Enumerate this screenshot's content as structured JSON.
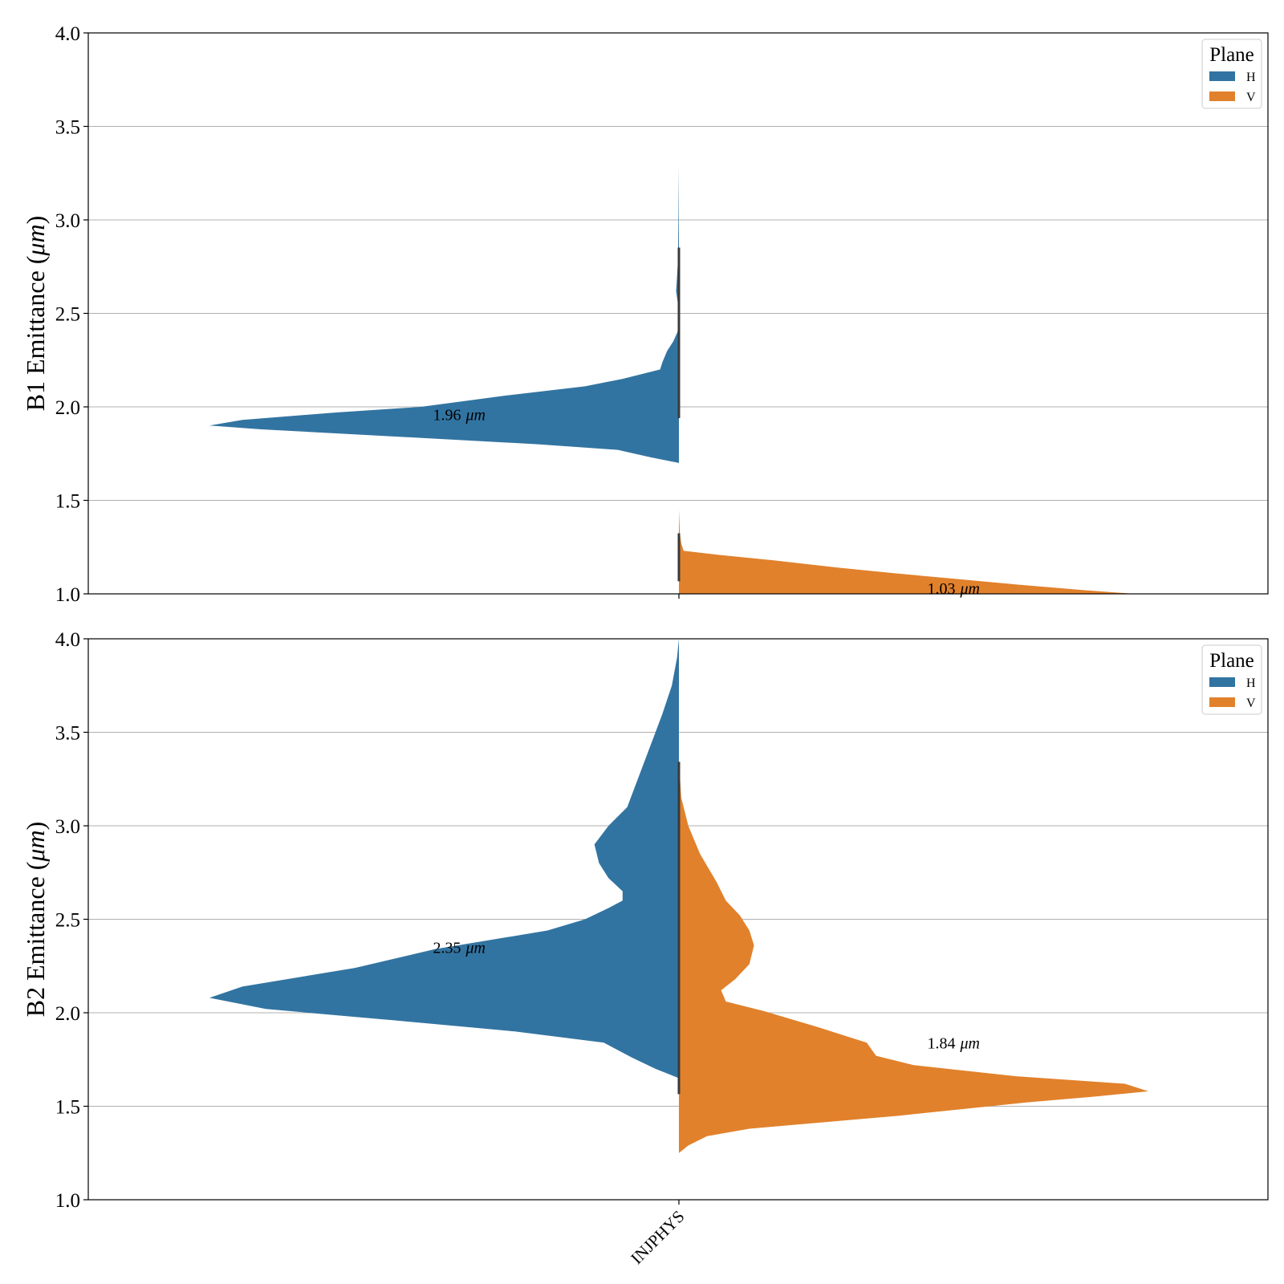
{
  "colors": {
    "H": "#3274a1",
    "V": "#e1812c"
  },
  "chart_data": [
    {
      "type": "violin",
      "ylabel_text": "B1 Emittance (",
      "ylabel_unit": "μm",
      "ylabel_close": ")",
      "ylim": [
        1.0,
        4.0
      ],
      "yticks": [
        "1.0",
        "1.5",
        "2.0",
        "2.5",
        "3.0",
        "3.5",
        "4.0"
      ],
      "grid": true,
      "legend": {
        "title": "Plane",
        "items": [
          "H",
          "V"
        ],
        "position": "top-right"
      },
      "categories": [
        "INJPHYS"
      ],
      "series": [
        {
          "name": "H",
          "side": "left",
          "median_label": "1.96",
          "median_y": 1.96,
          "label_x": -0.4,
          "profile": [
            [
              1.7,
              0.0
            ],
            [
              1.73,
              0.06
            ],
            [
              1.77,
              0.13
            ],
            [
              1.8,
              0.3
            ],
            [
              1.83,
              0.52
            ],
            [
              1.88,
              0.89
            ],
            [
              1.9,
              1.0
            ],
            [
              1.93,
              0.93
            ],
            [
              1.97,
              0.73
            ],
            [
              2.0,
              0.55
            ],
            [
              2.06,
              0.37
            ],
            [
              2.11,
              0.2
            ],
            [
              2.15,
              0.12
            ],
            [
              2.2,
              0.04
            ],
            [
              2.24,
              0.035
            ],
            [
              2.3,
              0.025
            ],
            [
              2.35,
              0.012
            ],
            [
              2.4,
              0.003
            ],
            [
              2.45,
              0.001
            ],
            [
              2.55,
              0.002
            ],
            [
              2.62,
              0.006
            ],
            [
              2.7,
              0.004
            ],
            [
              2.78,
              0.002
            ],
            [
              3.0,
              0.001
            ],
            [
              3.3,
              0.0
            ]
          ]
        },
        {
          "name": "V",
          "side": "right",
          "median_label": "1.03",
          "median_y": 1.03,
          "label_x": 0.5,
          "profile": [
            [
              1.0,
              0.97
            ],
            [
              1.02,
              0.86
            ],
            [
              1.05,
              0.72
            ],
            [
              1.08,
              0.59
            ],
            [
              1.11,
              0.46
            ],
            [
              1.14,
              0.34
            ],
            [
              1.18,
              0.2
            ],
            [
              1.21,
              0.08
            ],
            [
              1.23,
              0.01
            ],
            [
              1.27,
              0.005
            ],
            [
              1.32,
              0.002
            ],
            [
              1.45,
              0.0
            ]
          ]
        }
      ]
    },
    {
      "type": "violin",
      "ylabel_text": "B2 Emittance (",
      "ylabel_unit": "μm",
      "ylabel_close": ")",
      "ylim": [
        1.0,
        4.0
      ],
      "yticks": [
        "1.0",
        "1.5",
        "2.0",
        "2.5",
        "3.0",
        "3.5",
        "4.0"
      ],
      "grid": true,
      "legend": {
        "title": "Plane",
        "items": [
          "H",
          "V"
        ],
        "position": "top-right"
      },
      "categories": [
        "INJPHYS"
      ],
      "xtick_rotation": -45,
      "series": [
        {
          "name": "H",
          "side": "left",
          "median_label": "2.35",
          "median_y": 2.35,
          "label_x": -0.4,
          "profile": [
            [
              1.65,
              0.0
            ],
            [
              1.7,
              0.05
            ],
            [
              1.76,
              0.1
            ],
            [
              1.84,
              0.16
            ],
            [
              1.9,
              0.35
            ],
            [
              1.96,
              0.61
            ],
            [
              2.02,
              0.88
            ],
            [
              2.08,
              1.0
            ],
            [
              2.14,
              0.93
            ],
            [
              2.24,
              0.69
            ],
            [
              2.34,
              0.52
            ],
            [
              2.44,
              0.28
            ],
            [
              2.5,
              0.2
            ],
            [
              2.56,
              0.15
            ],
            [
              2.6,
              0.12
            ],
            [
              2.65,
              0.12
            ],
            [
              2.72,
              0.15
            ],
            [
              2.8,
              0.17
            ],
            [
              2.9,
              0.18
            ],
            [
              3.0,
              0.15
            ],
            [
              3.1,
              0.11
            ],
            [
              3.2,
              0.095
            ],
            [
              3.3,
              0.08
            ],
            [
              3.4,
              0.065
            ],
            [
              3.5,
              0.05
            ],
            [
              3.6,
              0.035
            ],
            [
              3.75,
              0.015
            ],
            [
              3.9,
              0.004
            ],
            [
              4.0,
              0.0
            ]
          ]
        },
        {
          "name": "V",
          "side": "right",
          "median_label": "1.84",
          "median_y": 1.84,
          "label_x": 0.5,
          "profile": [
            [
              1.25,
              0.0
            ],
            [
              1.29,
              0.02
            ],
            [
              1.34,
              0.06
            ],
            [
              1.38,
              0.15
            ],
            [
              1.45,
              0.47
            ],
            [
              1.52,
              0.74
            ],
            [
              1.55,
              0.88
            ],
            [
              1.58,
              1.0
            ],
            [
              1.62,
              0.95
            ],
            [
              1.66,
              0.72
            ],
            [
              1.72,
              0.5
            ],
            [
              1.77,
              0.42
            ],
            [
              1.84,
              0.4
            ],
            [
              1.88,
              0.35
            ],
            [
              1.92,
              0.3
            ],
            [
              2.01,
              0.18
            ],
            [
              2.06,
              0.1
            ],
            [
              2.12,
              0.09
            ],
            [
              2.18,
              0.12
            ],
            [
              2.26,
              0.15
            ],
            [
              2.36,
              0.16
            ],
            [
              2.44,
              0.15
            ],
            [
              2.52,
              0.13
            ],
            [
              2.6,
              0.1
            ],
            [
              2.7,
              0.08
            ],
            [
              2.85,
              0.045
            ],
            [
              3.0,
              0.02
            ],
            [
              3.15,
              0.005
            ],
            [
              3.35,
              0.0
            ]
          ]
        }
      ]
    }
  ]
}
